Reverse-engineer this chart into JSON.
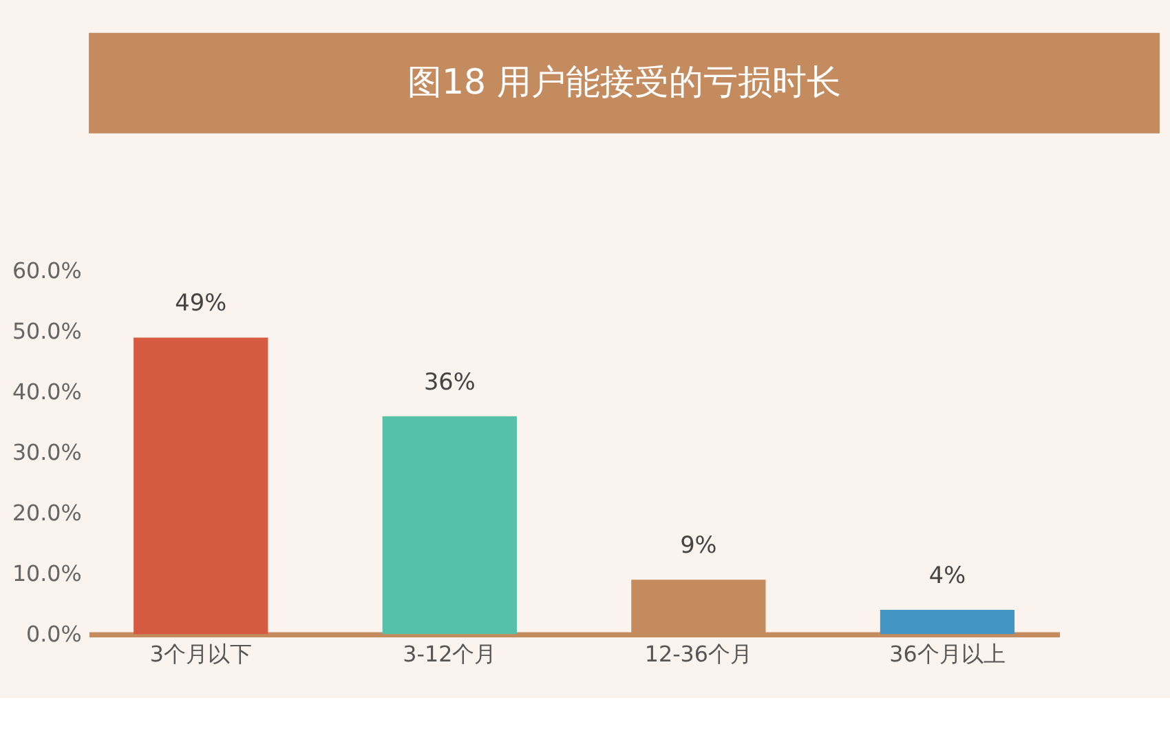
{
  "chart_data": {
    "type": "bar",
    "title": "图18  用户能接受的亏损时长",
    "categories": [
      "3个月以下",
      "3-12个月",
      "12-36个月",
      "36个月以上"
    ],
    "values": [
      49,
      36,
      9,
      4
    ],
    "colors": [
      "#d65a3f",
      "#54c1a8",
      "#c48b5e",
      "#4396c4"
    ],
    "value_labels": [
      "49%",
      "36%",
      "9%",
      "4%"
    ],
    "ylim": [
      0,
      60
    ],
    "yticks": [
      {
        "value": 0,
        "label": "0.0%"
      },
      {
        "value": 10,
        "label": "10.0%"
      },
      {
        "value": 20,
        "label": "20.0%"
      },
      {
        "value": 30,
        "label": "30.0%"
      },
      {
        "value": 40,
        "label": "40.0%"
      },
      {
        "value": 50,
        "label": "50.0%"
      },
      {
        "value": 60,
        "label": "60.0%"
      }
    ],
    "grid": false
  }
}
